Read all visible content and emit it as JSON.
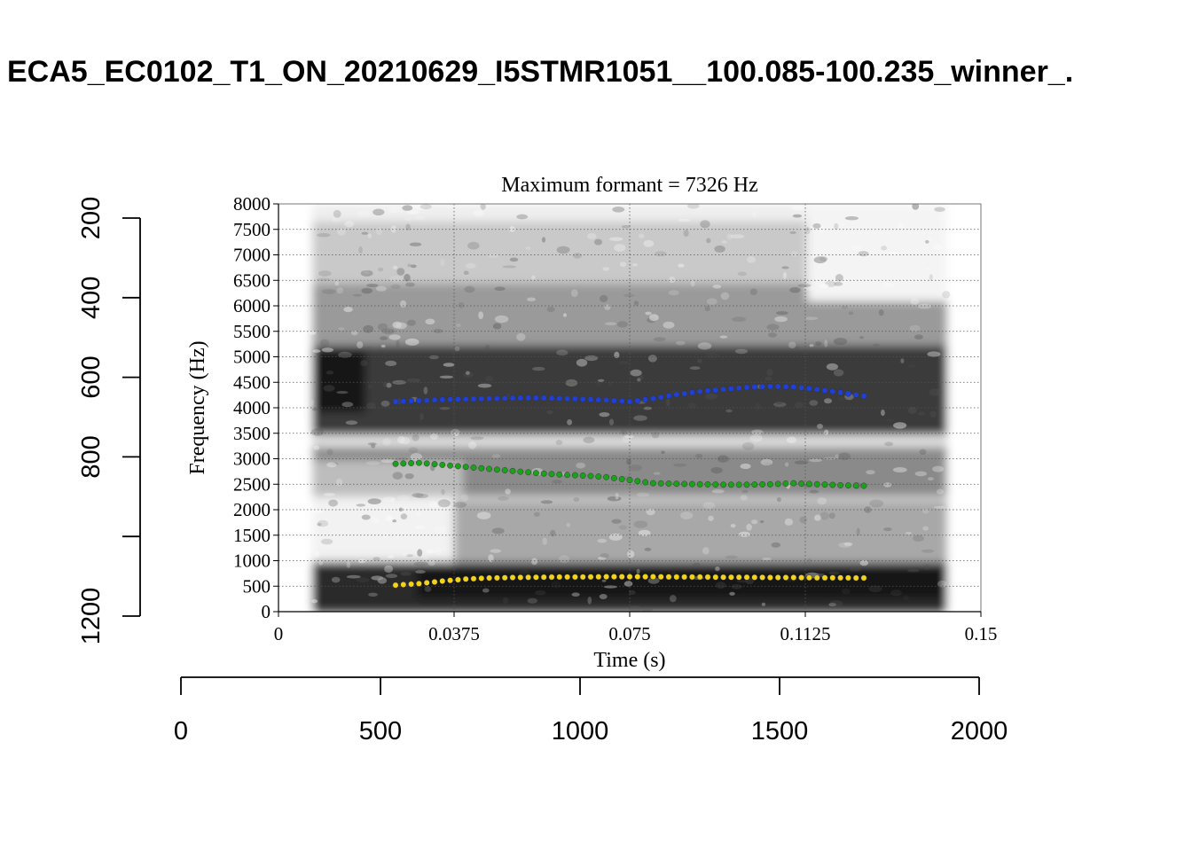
{
  "title": "ECA5_EC0102_T1_ON_20210629_I5STMR1051__100.085-100.235_winner_.",
  "chart_data": {
    "type": "scatter",
    "subtitle": "Maximum formant = 7326 Hz",
    "xlabel": "Time (s)",
    "ylabel": "Frequency (Hz)",
    "xlim": [
      0,
      0.15
    ],
    "ylim": [
      0,
      8000
    ],
    "x_ticks": [
      "0",
      "0.0375",
      "0.075",
      "0.1125",
      "0.15"
    ],
    "y_ticks": [
      "0",
      "500",
      "1000",
      "1500",
      "2000",
      "2500",
      "3000",
      "3500",
      "4000",
      "4500",
      "5000",
      "5500",
      "6000",
      "6500",
      "7000",
      "7500",
      "8000"
    ],
    "grid": true,
    "series": [
      {
        "color": "#1f3fd6",
        "points": [
          [
            0.025,
            4120
          ],
          [
            0.03,
            4140
          ],
          [
            0.035,
            4160
          ],
          [
            0.04,
            4170
          ],
          [
            0.045,
            4180
          ],
          [
            0.05,
            4190
          ],
          [
            0.055,
            4195
          ],
          [
            0.06,
            4185
          ],
          [
            0.065,
            4170
          ],
          [
            0.07,
            4150
          ],
          [
            0.075,
            4120
          ],
          [
            0.08,
            4180
          ],
          [
            0.085,
            4260
          ],
          [
            0.09,
            4320
          ],
          [
            0.095,
            4360
          ],
          [
            0.1,
            4400
          ],
          [
            0.105,
            4420
          ],
          [
            0.11,
            4410
          ],
          [
            0.115,
            4360
          ],
          [
            0.12,
            4300
          ],
          [
            0.125,
            4230
          ]
        ]
      },
      {
        "color": "#1aa31a",
        "points": [
          [
            0.025,
            2900
          ],
          [
            0.03,
            2920
          ],
          [
            0.035,
            2880
          ],
          [
            0.04,
            2840
          ],
          [
            0.045,
            2800
          ],
          [
            0.05,
            2760
          ],
          [
            0.055,
            2720
          ],
          [
            0.06,
            2690
          ],
          [
            0.065,
            2670
          ],
          [
            0.07,
            2640
          ],
          [
            0.075,
            2580
          ],
          [
            0.08,
            2520
          ],
          [
            0.085,
            2510
          ],
          [
            0.09,
            2500
          ],
          [
            0.095,
            2490
          ],
          [
            0.1,
            2490
          ],
          [
            0.105,
            2500
          ],
          [
            0.11,
            2520
          ],
          [
            0.115,
            2500
          ],
          [
            0.12,
            2480
          ],
          [
            0.125,
            2470
          ]
        ]
      },
      {
        "color": "#f2d21a",
        "points": [
          [
            0.025,
            520
          ],
          [
            0.03,
            550
          ],
          [
            0.035,
            600
          ],
          [
            0.04,
            640
          ],
          [
            0.045,
            660
          ],
          [
            0.05,
            670
          ],
          [
            0.055,
            675
          ],
          [
            0.06,
            680
          ],
          [
            0.065,
            680
          ],
          [
            0.07,
            685
          ],
          [
            0.075,
            685
          ],
          [
            0.08,
            685
          ],
          [
            0.085,
            680
          ],
          [
            0.09,
            680
          ],
          [
            0.095,
            675
          ],
          [
            0.1,
            675
          ],
          [
            0.105,
            670
          ],
          [
            0.11,
            670
          ],
          [
            0.115,
            665
          ],
          [
            0.12,
            665
          ],
          [
            0.125,
            660
          ]
        ]
      }
    ]
  },
  "outer_axes": {
    "x_ticks": [
      "0",
      "500",
      "1000",
      "1500",
      "2000"
    ],
    "y_ticks": [
      "200",
      "400",
      "600",
      "800",
      "1200"
    ]
  }
}
